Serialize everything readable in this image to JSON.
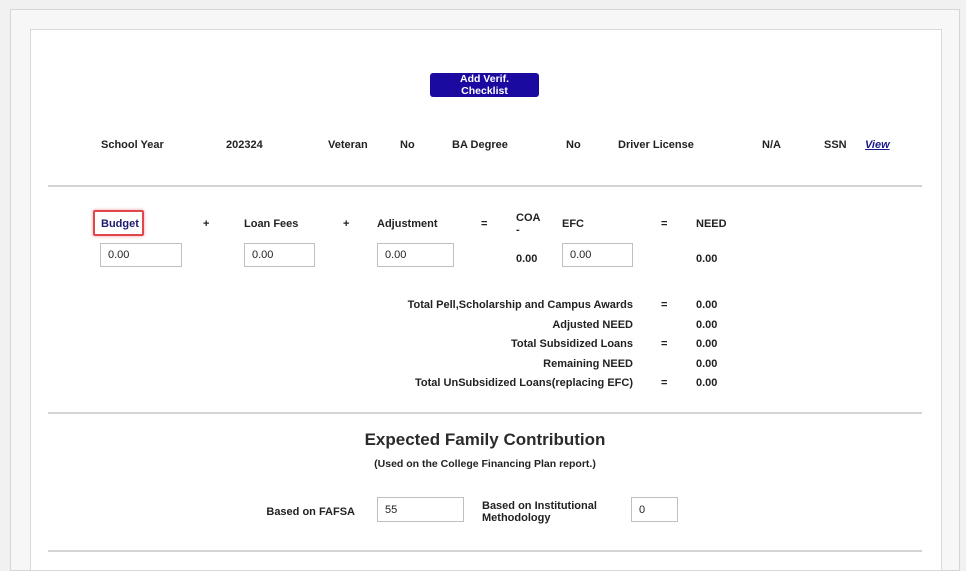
{
  "button": {
    "add_verif": "Add Verif. Checklist"
  },
  "info": {
    "school_year_label": "School Year",
    "school_year_value": "202324",
    "veteran_label": "Veteran",
    "veteran_value": "No",
    "ba_label": "BA Degree",
    "ba_value": "No",
    "dl_label": "Driver License",
    "dl_value": "N/A",
    "ssn_label": "SSN",
    "ssn_link": "View"
  },
  "calc": {
    "budget_label": "Budget",
    "plus": "+",
    "loan_fees_label": "Loan Fees",
    "adjustment_label": "Adjustment",
    "equals": "=",
    "coa_label": "COA",
    "coa_dash": "-",
    "efc_label": "EFC",
    "need_label": "NEED",
    "budget_value": "0.00",
    "loan_fees_value": "0.00",
    "adjustment_value": "0.00",
    "coa_value": "0.00",
    "efc_value": "0.00",
    "need_value": "0.00"
  },
  "totals": [
    {
      "label": "Total Pell,Scholarship and Campus Awards",
      "op": "=",
      "value": "0.00"
    },
    {
      "label": "Adjusted NEED",
      "op": "",
      "value": "0.00"
    },
    {
      "label": "Total Subsidized Loans",
      "op": "=",
      "value": "0.00"
    },
    {
      "label": "Remaining NEED",
      "op": "",
      "value": "0.00"
    },
    {
      "label": "Total UnSubsidized Loans(replacing EFC)",
      "op": "=",
      "value": "0.00"
    }
  ],
  "efc_section": {
    "title": "Expected Family Contribution",
    "subtitle": "(Used on the College Financing Plan report.)",
    "fafsa_label": "Based on FAFSA",
    "fafsa_value": "55",
    "im_label_line1": "Based on Institutional",
    "im_label_line2": "Methodology",
    "im_value": "0"
  }
}
